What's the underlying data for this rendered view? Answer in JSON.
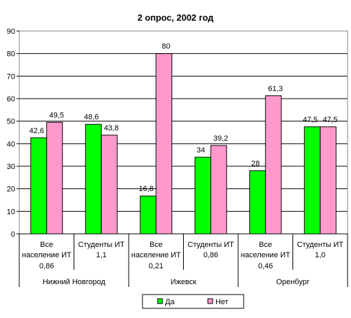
{
  "chart_data": {
    "type": "bar",
    "title": "2 опрос, 2002 год",
    "xlabel": "",
    "ylabel": "",
    "ylim": [
      0,
      90
    ],
    "yticks": [
      0,
      10,
      20,
      30,
      40,
      50,
      60,
      70,
      80,
      90
    ],
    "grid": true,
    "legend_position": "bottom",
    "categories": [
      {
        "line1": "Все",
        "line2": "население ИТ",
        "line3": "0,86",
        "group": "Нижний Новгород"
      },
      {
        "line1": "",
        "line2": "Студенты ИТ",
        "line3": "1,1",
        "group": "Нижний Новгород"
      },
      {
        "line1": "Все",
        "line2": "население ИТ",
        "line3": "0,21",
        "group": "Ижевск"
      },
      {
        "line1": "",
        "line2": "Студенты ИТ",
        "line3": "0,86",
        "group": "Ижевск"
      },
      {
        "line1": "Все",
        "line2": "население ИТ",
        "line3": "0,46",
        "group": "Оренбург"
      },
      {
        "line1": "",
        "line2": "Студенты ИТ",
        "line3": "1,0",
        "group": "Оренбург"
      }
    ],
    "groups": [
      "Нижний Новгород",
      "Ижевск",
      "Оренбург"
    ],
    "series": [
      {
        "name": "Да",
        "color": "#00ff00",
        "values": [
          42.6,
          48.6,
          16.8,
          34,
          28,
          47.5
        ],
        "labels": [
          "42,6",
          "48,6",
          "16,8",
          "34",
          "28",
          "47,5"
        ]
      },
      {
        "name": "Нет",
        "color": "#ff99cc",
        "values": [
          49.5,
          43.8,
          80,
          39.2,
          61.3,
          47.5
        ],
        "labels": [
          "49,5",
          "43,8",
          "80",
          "39,2",
          "61,3",
          "47,5"
        ]
      }
    ]
  }
}
